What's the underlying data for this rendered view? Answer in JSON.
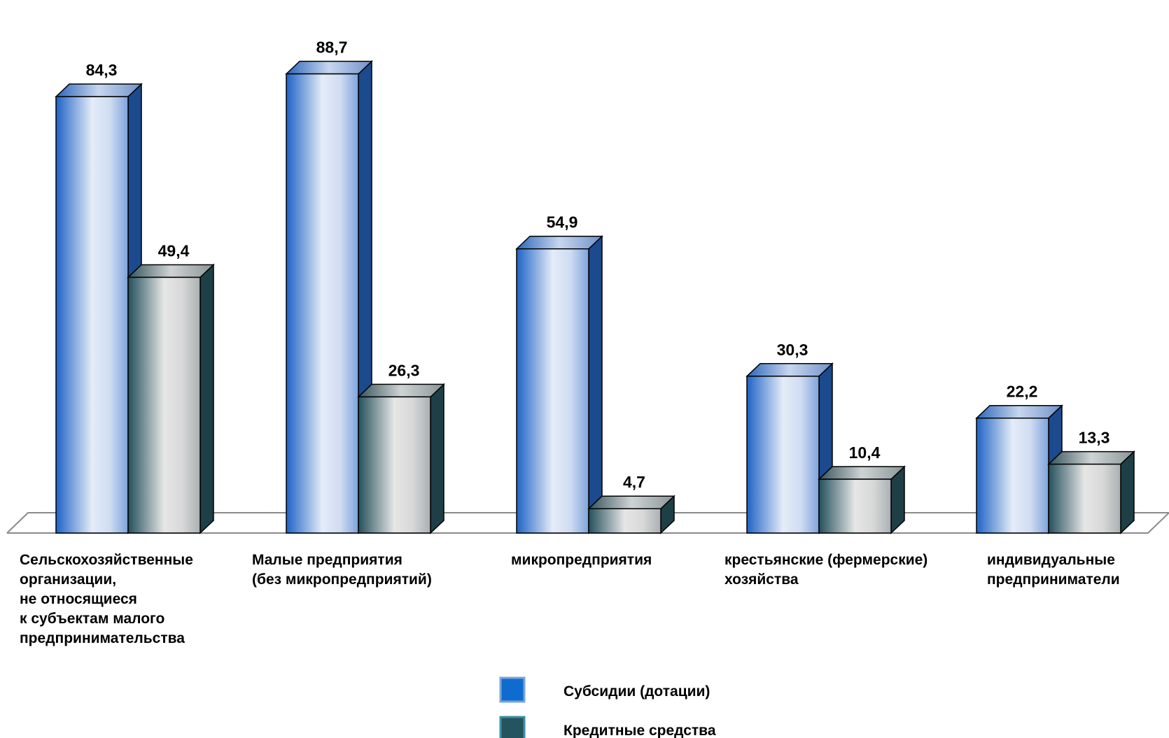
{
  "chart_data": {
    "type": "bar",
    "title": "",
    "xlabel": "",
    "ylabel": "",
    "ylim": [
      0,
      100
    ],
    "grid": false,
    "legend_position": "bottom-center",
    "categories": [
      [
        "Сельскохозяйственные",
        "организации,",
        "не относящиеся",
        "к субъектам  малого",
        "предпринимательства"
      ],
      [
        "Малые  предприятия",
        "(без микропредприятий)"
      ],
      [
        "микропредприятия"
      ],
      [
        "крестьянские (фермерские)",
        "хозяйства"
      ],
      [
        "индивидуальные",
        "предприниматели"
      ]
    ],
    "series": [
      {
        "name": "Субсидии (дотации)",
        "values": [
          84.3,
          88.7,
          54.9,
          30.3,
          22.2
        ],
        "labels": [
          "84,3",
          "88,7",
          "54,9",
          "30,3",
          "22,2"
        ],
        "color": "#1f63c6"
      },
      {
        "name": "Кредитные средства",
        "values": [
          49.4,
          26.3,
          4.7,
          10.4,
          13.3
        ],
        "labels": [
          "49,4",
          "26,3",
          "4,7",
          "10,4",
          "13,3"
        ],
        "color": "#24505c"
      }
    ]
  }
}
